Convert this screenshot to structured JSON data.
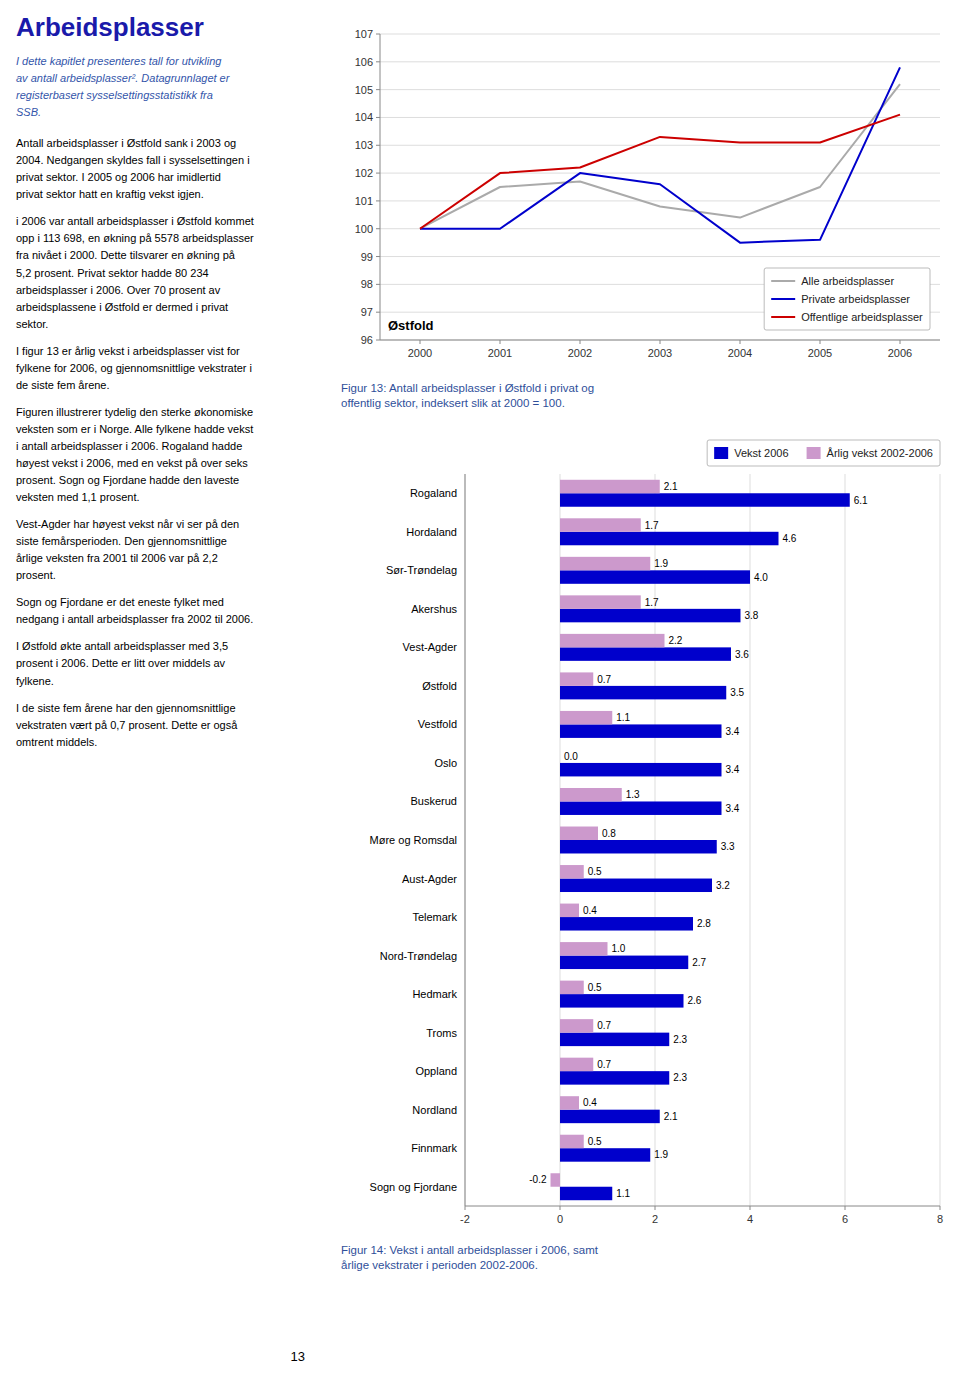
{
  "page_text": {
    "title": "Arbeidsplasser",
    "intro": "I dette kapitlet presenteres tall for utvikling\nav antall arbeidsplasser². Datagrunnlaget er\nregisterbasert sysselsettingsstatistikk fra\nSSB.",
    "paragraphs": [
      "Antall arbeidsplasser i Østfold sank i 2003 og\n2004. Nedgangen skyldes fall i sysselsettingen i\nprivat sektor. I 2005 og 2006 har imidlertid\nprivat sektor hatt en kraftig vekst igjen.",
      "i 2006 var antall arbeidsplasser i Østfold kommet\nopp i 113 698, en økning på 5578 arbeidsplasser\nfra nivået i 2000. Dette tilsvarer en økning på\n5,2 prosent. Privat sektor hadde 80 234\narbeidsplasser i 2006. Over 70 prosent av\narbeidsplassene i Østfold er dermed i privat\nsektor.",
      "I figur 13 er årlig vekst i arbeidsplasser vist for\nfylkene for 2006, og gjennomsnittlige vekstrater i\nde siste fem årene.",
      "Figuren illustrerer tydelig den sterke økonomiske\nveksten som er i Norge. Alle fylkene hadde vekst\ni antall arbeidsplasser i 2006. Rogaland hadde\nhøyest vekst i 2006, med en vekst på over seks\nprosent. Sogn og Fjordane hadde den laveste\nveksten med 1,1 prosent.",
      "Vest-Agder har høyest vekst når vi ser på den\nsiste femårsperioden. Den gjennomsnittlige\nårlige veksten fra 2001 til 2006 var på 2,2\nprosent.",
      "Sogn og Fjordane er det eneste fylket med\nnedgang i antall arbeidsplasser fra 2002 til 2006.",
      "I Østfold økte antall arbeidsplasser med 3,5\nprosent i 2006. Dette er litt over middels av\nfylkene.",
      "I de siste fem årene har den gjennomsnittlige\nvekstraten vært på 0,7 prosent. Dette er også\nomtrent middels."
    ],
    "page_number": "13"
  },
  "chart_data": [
    {
      "type": "line",
      "title": "Figur 13: Antall arbeidsplasser i Østfold i privat og\noffentlig sektor, indeksert slik at 2000 = 100.",
      "x": [
        2000,
        2001,
        2002,
        2003,
        2004,
        2005,
        2006
      ],
      "series": [
        {
          "name": "Alle arbeidsplasser",
          "color": "#aaaaaa",
          "values": [
            100.0,
            101.5,
            101.7,
            100.8,
            100.4,
            101.5,
            105.2
          ]
        },
        {
          "name": "Private arbeidsplasser",
          "color": "#0000cc",
          "values": [
            100.0,
            100.0,
            102.0,
            101.6,
            99.5,
            99.6,
            105.8
          ]
        },
        {
          "name": "Offentlige arbeidsplasser",
          "color": "#cc0000",
          "values": [
            100.0,
            102.0,
            102.2,
            103.3,
            103.1,
            103.1,
            104.1
          ]
        }
      ],
      "xlim": [
        1999.5,
        2006.5
      ],
      "xticks": [
        2000,
        2001,
        2002,
        2003,
        2004,
        2005,
        2006
      ],
      "ylim": [
        96,
        107
      ],
      "yticks": [
        96,
        97,
        98,
        99,
        100,
        101,
        102,
        103,
        104,
        105,
        106,
        107
      ],
      "grid": "y",
      "legend": "lower right",
      "annotations": [
        {
          "text": "Østfold"
        }
      ]
    },
    {
      "type": "bar",
      "orientation": "horizontal",
      "title": "Figur 14: Vekst i antall arbeidsplasser i 2006, samt\nårlige vekstrater i perioden 2002-2006.",
      "categories": [
        "Rogaland",
        "Hordaland",
        "Sør-Trøndelag",
        "Akershus",
        "Vest-Agder",
        "Østfold",
        "Vestfold",
        "Oslo",
        "Buskerud",
        "Møre og Romsdal",
        "Aust-Agder",
        "Telemark",
        "Nord-Trøndelag",
        "Hedmark",
        "Troms",
        "Oppland",
        "Nordland",
        "Finnmark",
        "Sogn og Fjordane"
      ],
      "series": [
        {
          "name": "Vekst 2006",
          "color": "#0000cc",
          "values": [
            6.1,
            4.6,
            4.0,
            3.8,
            3.6,
            3.5,
            3.4,
            3.4,
            3.4,
            3.3,
            3.2,
            2.8,
            2.7,
            2.6,
            2.3,
            2.3,
            2.1,
            1.9,
            1.1
          ],
          "value_labels": [
            "6.1",
            "4.6",
            "4.0",
            "3.8",
            "3.6",
            "3.5",
            "3.4",
            "3.4",
            "3.4",
            "3.3",
            "3.2",
            "2.8",
            "2.7",
            "2.6",
            "2.3",
            "2.3",
            "2.1",
            "1.9",
            "1.1"
          ]
        },
        {
          "name": "Årlig vekst 2002-2006",
          "color": "#cc99cc",
          "values": [
            2.1,
            1.7,
            1.9,
            1.7,
            2.2,
            0.7,
            1.1,
            0.0,
            1.3,
            0.8,
            0.5,
            0.4,
            1.0,
            0.5,
            0.7,
            0.7,
            0.4,
            0.5,
            -0.2
          ],
          "value_labels": [
            "2.1",
            "1.7",
            "1.9",
            "1.7",
            "2.2",
            "0.7",
            "1.1",
            "0.0",
            "1.3",
            "0.8",
            "0.5",
            "0.4",
            "1.0",
            "0.5",
            "0.7",
            "0.7",
            "0.4",
            "0.5",
            "-0.2"
          ]
        }
      ],
      "xlim": [
        -2,
        8
      ],
      "xticks": [
        -2,
        0,
        2,
        4,
        6,
        8
      ],
      "grid": "x",
      "legend": "upper right",
      "data_labels": true
    }
  ]
}
